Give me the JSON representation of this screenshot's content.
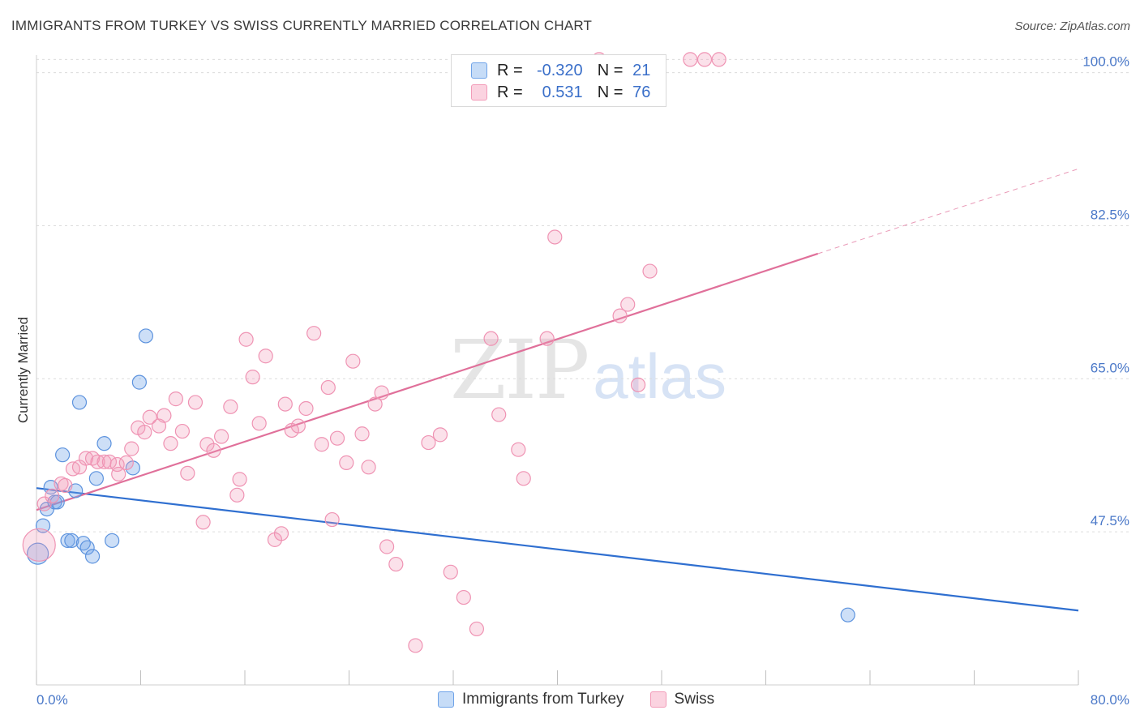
{
  "title": "IMMIGRANTS FROM TURKEY VS SWISS CURRENTLY MARRIED CORRELATION CHART",
  "source": "Source: ZipAtlas.com",
  "watermark": {
    "zip": "ZIP",
    "atlas": "atlas"
  },
  "legend": {
    "r_label": "R =",
    "n_label": "N =",
    "rows": [
      {
        "r": "-0.320",
        "n": "21"
      },
      {
        "r": "0.531",
        "n": "76"
      }
    ]
  },
  "bottom_legend": [
    "Immigrants from Turkey",
    "Swiss"
  ],
  "chart_data": {
    "type": "scatter",
    "title": "IMMIGRANTS FROM TURKEY VS SWISS CURRENTLY MARRIED CORRELATION CHART",
    "xlabel": "",
    "ylabel": "Currently Married",
    "xlim": [
      0,
      80
    ],
    "ylim": [
      30,
      102
    ],
    "x_tick_labels": [
      "0.0%",
      "80.0%"
    ],
    "y_ticks": [
      47.5,
      65.0,
      82.5,
      100.0
    ],
    "y_tick_labels": [
      "47.5%",
      "65.0%",
      "82.5%",
      "100.0%"
    ],
    "grid": true,
    "legend_position": "top-center",
    "colors": {
      "turkey": "#6fa3e8",
      "turkey_line": "#2f6fd0",
      "swiss": "#f29bb8",
      "swiss_line": "#e0709a"
    },
    "series": [
      {
        "name": "Immigrants from Turkey",
        "r": -0.32,
        "n": 21,
        "points": [
          [
            0.1,
            45.0,
            2
          ],
          [
            0.5,
            48.2,
            1
          ],
          [
            0.8,
            50.1,
            1
          ],
          [
            1.1,
            52.6,
            1
          ],
          [
            1.4,
            50.9,
            1
          ],
          [
            1.6,
            50.9,
            1
          ],
          [
            2.0,
            56.3,
            1
          ],
          [
            2.4,
            46.5,
            1
          ],
          [
            2.7,
            46.5,
            1
          ],
          [
            3.0,
            52.2,
            1
          ],
          [
            3.3,
            62.3,
            1
          ],
          [
            3.6,
            46.2,
            1
          ],
          [
            3.9,
            45.7,
            1
          ],
          [
            4.3,
            44.7,
            1
          ],
          [
            4.6,
            53.6,
            1
          ],
          [
            5.2,
            57.6,
            1
          ],
          [
            5.8,
            46.5,
            1
          ],
          [
            7.4,
            54.8,
            1
          ],
          [
            7.9,
            64.6,
            1
          ],
          [
            8.4,
            69.9,
            1
          ],
          [
            62.3,
            38.0,
            1
          ]
        ],
        "trend": {
          "x0": 0,
          "y0": 52.5,
          "x1": 80,
          "y1": 38.5
        }
      },
      {
        "name": "Swiss",
        "r": 0.531,
        "n": 76,
        "points": [
          [
            0.2,
            46.0,
            3
          ],
          [
            0.6,
            50.7,
            1
          ],
          [
            1.2,
            51.6,
            1
          ],
          [
            1.9,
            53.0,
            1
          ],
          [
            2.2,
            52.8,
            1
          ],
          [
            2.8,
            54.7,
            1
          ],
          [
            3.3,
            54.9,
            1
          ],
          [
            3.8,
            55.9,
            1
          ],
          [
            4.3,
            55.9,
            1
          ],
          [
            4.7,
            55.5,
            1
          ],
          [
            5.2,
            55.5,
            1
          ],
          [
            5.6,
            55.5,
            1
          ],
          [
            6.2,
            55.2,
            1
          ],
          [
            6.3,
            54.1,
            1
          ],
          [
            6.9,
            55.4,
            1
          ],
          [
            7.3,
            57.0,
            1
          ],
          [
            7.8,
            59.4,
            1
          ],
          [
            8.3,
            58.9,
            1
          ],
          [
            8.7,
            60.6,
            1
          ],
          [
            9.4,
            59.6,
            1
          ],
          [
            9.8,
            60.8,
            1
          ],
          [
            10.3,
            57.6,
            1
          ],
          [
            10.7,
            62.7,
            1
          ],
          [
            11.2,
            59.0,
            1
          ],
          [
            11.6,
            54.2,
            1
          ],
          [
            12.2,
            62.3,
            1
          ],
          [
            12.8,
            48.6,
            1
          ],
          [
            13.1,
            57.5,
            1
          ],
          [
            13.6,
            56.8,
            1
          ],
          [
            14.2,
            58.4,
            1
          ],
          [
            14.9,
            61.8,
            1
          ],
          [
            15.4,
            51.7,
            1
          ],
          [
            15.6,
            53.5,
            1
          ],
          [
            16.1,
            69.5,
            1
          ],
          [
            16.6,
            65.2,
            1
          ],
          [
            17.1,
            59.9,
            1
          ],
          [
            17.6,
            67.6,
            1
          ],
          [
            18.3,
            46.6,
            1
          ],
          [
            18.8,
            47.3,
            1
          ],
          [
            19.1,
            62.1,
            1
          ],
          [
            19.6,
            59.1,
            1
          ],
          [
            20.1,
            59.6,
            1
          ],
          [
            20.7,
            61.6,
            1
          ],
          [
            21.3,
            70.2,
            1
          ],
          [
            21.9,
            57.5,
            1
          ],
          [
            22.4,
            64.0,
            1
          ],
          [
            22.7,
            48.9,
            1
          ],
          [
            23.1,
            58.2,
            1
          ],
          [
            23.8,
            55.4,
            1
          ],
          [
            24.3,
            67.0,
            1
          ],
          [
            25.0,
            58.7,
            1
          ],
          [
            25.5,
            54.9,
            1
          ],
          [
            26.0,
            62.1,
            1
          ],
          [
            26.5,
            63.4,
            1
          ],
          [
            26.9,
            45.8,
            1
          ],
          [
            27.6,
            43.8,
            1
          ],
          [
            29.1,
            34.5,
            1
          ],
          [
            30.1,
            57.7,
            1
          ],
          [
            31.0,
            58.6,
            1
          ],
          [
            31.8,
            42.9,
            1
          ],
          [
            32.8,
            40.0,
            1
          ],
          [
            33.8,
            36.4,
            1
          ],
          [
            34.9,
            69.6,
            1
          ],
          [
            35.5,
            60.9,
            1
          ],
          [
            37.0,
            56.9,
            1
          ],
          [
            37.4,
            53.6,
            1
          ],
          [
            39.2,
            69.6,
            1
          ],
          [
            39.8,
            81.2,
            1
          ],
          [
            43.2,
            101.5,
            1
          ],
          [
            44.8,
            72.2,
            1
          ],
          [
            45.4,
            73.5,
            1
          ],
          [
            46.2,
            64.3,
            1
          ],
          [
            47.1,
            77.3,
            1
          ],
          [
            50.2,
            101.5,
            1
          ],
          [
            51.3,
            101.5,
            1
          ],
          [
            52.4,
            101.5,
            1
          ]
        ],
        "trend": {
          "x0": 0,
          "y0": 50.0,
          "x1": 60,
          "y1": 79.3,
          "dash_to_x": 80,
          "dash_to_y": 89.0
        }
      }
    ]
  }
}
